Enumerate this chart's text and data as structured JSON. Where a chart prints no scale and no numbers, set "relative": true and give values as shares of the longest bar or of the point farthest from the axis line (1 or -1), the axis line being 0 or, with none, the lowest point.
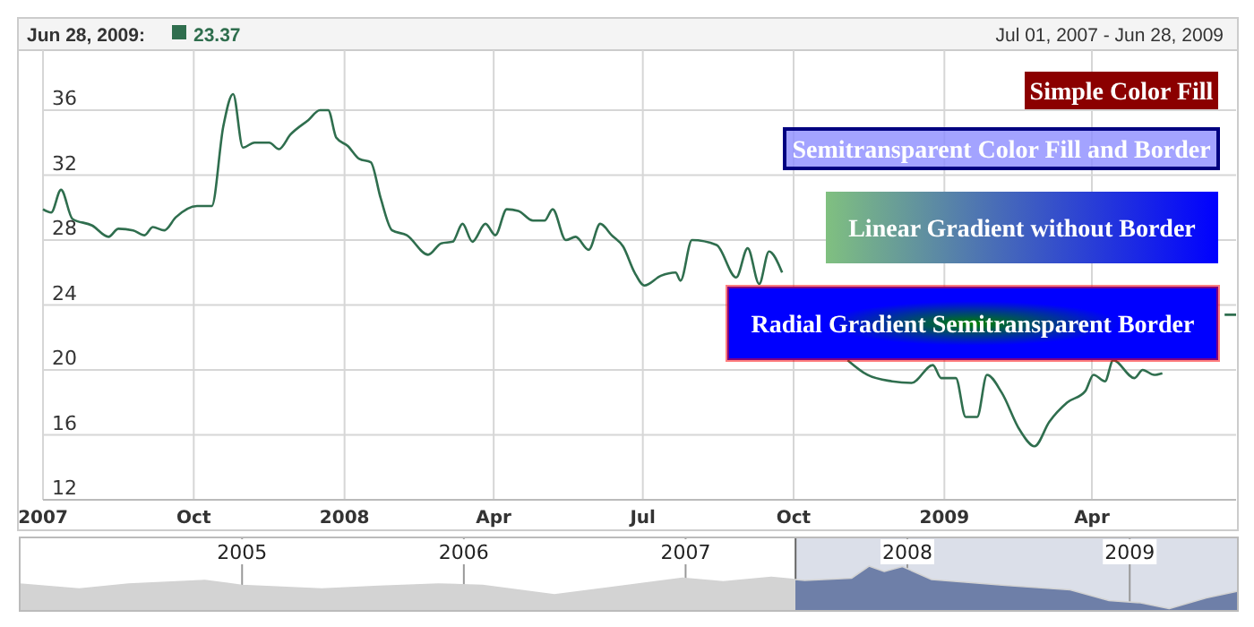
{
  "chart_data": [
    {
      "type": "line",
      "subtitle": "Jul 01, 2007 - Jun 28, 2009",
      "annotations": [
        "Jun 28, 2009:",
        "23.37",
        "Simple Color Fill",
        "Semitransparent Color Fill and Border",
        "Linear Gradient without Border",
        "Radial Gradient Semitransparent Border"
      ],
      "x": [
        "2007-07-01",
        "2007-07-06",
        "2007-07-12",
        "2007-07-19",
        "2007-07-31",
        "2007-08-10",
        "2007-08-16",
        "2007-08-25",
        "2007-09-01",
        "2007-09-06",
        "2007-09-13",
        "2007-09-20",
        "2007-10-03",
        "2007-10-12",
        "2007-10-19",
        "2007-10-25",
        "2007-10-31",
        "2007-11-07",
        "2007-11-16",
        "2007-11-22",
        "2007-11-29",
        "2007-12-10",
        "2007-12-17",
        "2007-12-22",
        "2007-12-27",
        "2008-01-03",
        "2008-01-10",
        "2008-01-17",
        "2008-01-23",
        "2008-01-30",
        "2008-02-08",
        "2008-02-21",
        "2008-02-29",
        "2008-03-07",
        "2008-03-13",
        "2008-03-19",
        "2008-03-27",
        "2008-04-02",
        "2008-04-09",
        "2008-04-16",
        "2008-04-25",
        "2008-05-02",
        "2008-05-07",
        "2008-05-15",
        "2008-05-21",
        "2008-05-29",
        "2008-06-05",
        "2008-06-12",
        "2008-06-19",
        "2008-06-26",
        "2008-07-02",
        "2008-07-12",
        "2008-07-21",
        "2008-07-24",
        "2008-07-31",
        "2008-08-15",
        "2008-08-27",
        "2008-09-03",
        "2008-09-10",
        "2008-09-16",
        "2008-09-24",
        "2008-10-16",
        "2008-11-03",
        "2008-11-15",
        "2008-11-30",
        "2008-12-12",
        "2008-12-25",
        "2008-12-30",
        "2009-01-08",
        "2009-01-14",
        "2009-01-21",
        "2009-01-27",
        "2009-02-05",
        "2009-02-16",
        "2009-02-25",
        "2009-03-06",
        "2009-03-17",
        "2009-03-28",
        "2009-04-02",
        "2009-04-09",
        "2009-04-14",
        "2009-04-27",
        "2009-05-02",
        "2009-05-09",
        "2009-05-14",
        "2009-06-01",
        "2009-06-21",
        "2009-06-28"
      ],
      "series": [
        {
          "color": "#2f6e4e",
          "values": [
            29.9,
            29.7,
            31.1,
            29.3,
            28.9,
            28.2,
            28.7,
            28.6,
            28.3,
            28.8,
            28.6,
            29.4,
            30.1,
            30.1,
            35.0,
            37.0,
            33.7,
            34.0,
            34.0,
            33.6,
            34.5,
            35.4,
            36.0,
            36.0,
            34.3,
            33.8,
            33.0,
            32.8,
            30.6,
            28.6,
            28.3,
            27.1,
            27.8,
            27.9,
            29.0,
            27.9,
            29.0,
            28.3,
            29.9,
            29.8,
            29.2,
            29.2,
            29.9,
            28.0,
            28.2,
            27.4,
            29.0,
            28.3,
            27.6,
            26.0,
            25.2,
            25.8,
            26.0,
            25.5,
            28.0,
            27.7,
            25.7,
            27.5,
            25.3,
            27.3,
            26.0,
            null,
            20.6,
            19.7,
            19.3,
            19.2,
            20.3,
            19.5,
            19.5,
            17.1,
            17.1,
            19.7,
            18.6,
            16.3,
            15.3,
            16.8,
            18.0,
            18.7,
            19.7,
            19.3,
            20.6,
            19.5,
            20.0,
            19.7,
            19.8,
            null,
            23.4,
            23.4
          ]
        }
      ],
      "xlim": [
        "2007-07-01",
        "2009-06-28"
      ],
      "xticks": [
        {
          "value": "2007-07-01",
          "label": "2007"
        },
        {
          "value": "2007-10-01",
          "label": "Oct"
        },
        {
          "value": "2008-01-01",
          "label": "2008"
        },
        {
          "value": "2008-04-01",
          "label": "Apr"
        },
        {
          "value": "2008-07-01",
          "label": "Jul"
        },
        {
          "value": "2008-10-01",
          "label": "Oct"
        },
        {
          "value": "2009-01-01",
          "label": "2009"
        },
        {
          "value": "2009-04-01",
          "label": "Apr"
        }
      ],
      "ylim": [
        12,
        39.7
      ],
      "yticks": [
        12,
        16,
        20,
        24,
        28,
        32,
        36
      ],
      "grid": true
    },
    {
      "type": "area",
      "relative": true,
      "x": [
        "2004-01-01",
        "2004-04-08",
        "2004-06-28",
        "2004-11-01",
        "2005-01-01",
        "2005-05-12",
        "2005-08-14",
        "2005-11-20",
        "2006-02-01",
        "2006-05-30",
        "2006-08-30",
        "2006-12-27",
        "2007-03-04",
        "2007-05-22",
        "2007-07-16",
        "2007-10-01",
        "2007-10-30",
        "2007-11-24",
        "2007-12-24",
        "2008-02-10",
        "2008-06-10",
        "2008-09-25",
        "2008-11-28",
        "2009-01-19",
        "2009-03-07",
        "2009-05-07",
        "2009-06-28"
      ],
      "series": [
        {
          "color": "#d3d3d3",
          "values": [
            0.6,
            0.49,
            0.6,
            0.68,
            0.57,
            0.49,
            0.55,
            0.6,
            0.57,
            0.36,
            0.52,
            0.73,
            0.65,
            0.75,
            0.68,
            0.73,
            1.0,
            0.88,
            0.99,
            0.7,
            0.57,
            0.47,
            0.23,
            0.18,
            0.05,
            0.29,
            0.44
          ]
        }
      ],
      "xlim": [
        "2004-01-01",
        "2009-06-28"
      ],
      "xticks": [
        {
          "value": "2005-01-01",
          "label": "2005"
        },
        {
          "value": "2006-01-01",
          "label": "2006"
        },
        {
          "value": "2007-01-01",
          "label": "2007"
        },
        {
          "value": "2008-01-01",
          "label": "2008"
        },
        {
          "value": "2009-01-01",
          "label": "2009"
        }
      ],
      "grid": "x",
      "bands": [
        {
          "axis": "x",
          "from": "2007-07-01",
          "to": "2009-06-28",
          "color": "#6e7fa8"
        }
      ]
    }
  ]
}
